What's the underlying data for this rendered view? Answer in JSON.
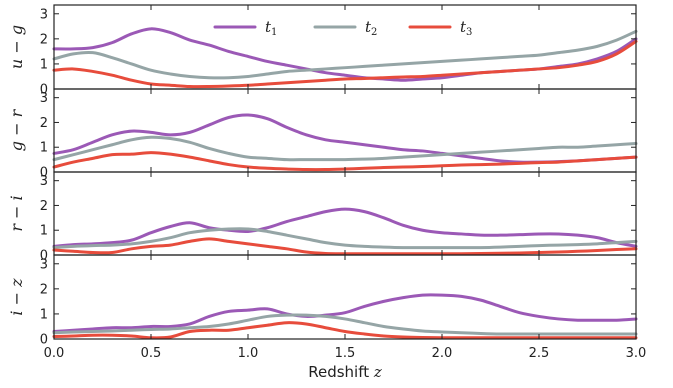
{
  "chart_data": {
    "type": "line",
    "xlabel": "Redshift z",
    "xlim": [
      0.0,
      3.0
    ],
    "xticks": [
      "0.0",
      "0.5",
      "1.0",
      "1.5",
      "2.0",
      "2.5",
      "3.0"
    ],
    "ylim": [
      0,
      3.35
    ],
    "yticks": [
      "0",
      "1",
      "2",
      "3"
    ],
    "legend": {
      "placement": "top-center",
      "entries": [
        "t1",
        "t2",
        "t3"
      ]
    },
    "colors": {
      "t1": "#9b59b6",
      "t2": "#95a5a6",
      "t3": "#e74c3c"
    },
    "x": [
      0.0,
      0.1,
      0.2,
      0.3,
      0.4,
      0.5,
      0.6,
      0.7,
      0.8,
      0.9,
      1.0,
      1.1,
      1.2,
      1.3,
      1.4,
      1.5,
      1.6,
      1.7,
      1.8,
      1.9,
      2.0,
      2.1,
      2.2,
      2.3,
      2.4,
      2.5,
      2.6,
      2.7,
      2.8,
      2.9,
      3.0
    ],
    "panels": [
      {
        "ylabel": "u − g",
        "series": [
          {
            "name": "t1",
            "values": [
              1.6,
              1.6,
              1.65,
              1.85,
              2.2,
              2.4,
              2.25,
              1.95,
              1.75,
              1.5,
              1.3,
              1.1,
              0.95,
              0.8,
              0.65,
              0.55,
              0.45,
              0.4,
              0.35,
              0.4,
              0.45,
              0.55,
              0.65,
              0.7,
              0.75,
              0.8,
              0.9,
              1.0,
              1.2,
              1.5,
              2.0
            ]
          },
          {
            "name": "t2",
            "values": [
              1.2,
              1.4,
              1.45,
              1.25,
              1.0,
              0.75,
              0.6,
              0.5,
              0.45,
              0.45,
              0.5,
              0.6,
              0.7,
              0.75,
              0.8,
              0.85,
              0.9,
              0.95,
              1.0,
              1.05,
              1.1,
              1.15,
              1.2,
              1.25,
              1.3,
              1.35,
              1.45,
              1.55,
              1.7,
              1.95,
              2.3
            ]
          },
          {
            "name": "t3",
            "values": [
              0.75,
              0.8,
              0.7,
              0.55,
              0.35,
              0.2,
              0.15,
              0.1,
              0.1,
              0.12,
              0.15,
              0.2,
              0.25,
              0.3,
              0.35,
              0.4,
              0.42,
              0.45,
              0.48,
              0.5,
              0.55,
              0.6,
              0.65,
              0.7,
              0.75,
              0.8,
              0.85,
              0.95,
              1.1,
              1.4,
              1.9
            ]
          }
        ]
      },
      {
        "ylabel": "g − r",
        "series": [
          {
            "name": "t1",
            "values": [
              0.75,
              0.9,
              1.2,
              1.5,
              1.65,
              1.6,
              1.5,
              1.6,
              1.9,
              2.2,
              2.3,
              2.15,
              1.8,
              1.5,
              1.3,
              1.2,
              1.1,
              1.0,
              0.9,
              0.85,
              0.75,
              0.65,
              0.55,
              0.45,
              0.4,
              0.4,
              0.42,
              0.45,
              0.5,
              0.55,
              0.6
            ]
          },
          {
            "name": "t2",
            "values": [
              0.5,
              0.7,
              0.9,
              1.1,
              1.3,
              1.4,
              1.35,
              1.2,
              0.95,
              0.75,
              0.6,
              0.55,
              0.5,
              0.5,
              0.5,
              0.5,
              0.52,
              0.55,
              0.6,
              0.65,
              0.7,
              0.75,
              0.8,
              0.85,
              0.9,
              0.95,
              1.0,
              1.0,
              1.05,
              1.1,
              1.15
            ]
          },
          {
            "name": "t3",
            "values": [
              0.2,
              0.4,
              0.55,
              0.7,
              0.72,
              0.78,
              0.72,
              0.6,
              0.45,
              0.3,
              0.2,
              0.15,
              0.12,
              0.1,
              0.1,
              0.12,
              0.15,
              0.18,
              0.2,
              0.22,
              0.25,
              0.28,
              0.3,
              0.32,
              0.35,
              0.38,
              0.4,
              0.45,
              0.5,
              0.55,
              0.6
            ]
          }
        ]
      },
      {
        "ylabel": "r − i",
        "series": [
          {
            "name": "t1",
            "values": [
              0.35,
              0.42,
              0.45,
              0.5,
              0.6,
              0.9,
              1.15,
              1.3,
              1.1,
              1.0,
              0.95,
              1.1,
              1.35,
              1.55,
              1.75,
              1.85,
              1.75,
              1.5,
              1.2,
              1.0,
              0.9,
              0.85,
              0.8,
              0.8,
              0.82,
              0.85,
              0.85,
              0.8,
              0.7,
              0.5,
              0.35
            ]
          },
          {
            "name": "t2",
            "values": [
              0.3,
              0.35,
              0.38,
              0.4,
              0.45,
              0.55,
              0.7,
              0.9,
              1.0,
              1.05,
              1.05,
              0.95,
              0.8,
              0.65,
              0.5,
              0.4,
              0.35,
              0.32,
              0.3,
              0.3,
              0.3,
              0.3,
              0.3,
              0.32,
              0.35,
              0.38,
              0.4,
              0.42,
              0.45,
              0.5,
              0.55
            ]
          },
          {
            "name": "t3",
            "values": [
              0.2,
              0.15,
              0.1,
              0.1,
              0.25,
              0.35,
              0.4,
              0.55,
              0.65,
              0.55,
              0.45,
              0.35,
              0.25,
              0.12,
              0.06,
              0.05,
              0.05,
              0.05,
              0.05,
              0.05,
              0.05,
              0.05,
              0.06,
              0.07,
              0.08,
              0.1,
              0.12,
              0.15,
              0.18,
              0.22,
              0.25
            ]
          }
        ]
      },
      {
        "ylabel": "i − z",
        "series": [
          {
            "name": "t1",
            "values": [
              0.3,
              0.35,
              0.4,
              0.45,
              0.45,
              0.5,
              0.5,
              0.6,
              0.9,
              1.1,
              1.15,
              1.2,
              1.0,
              0.9,
              0.95,
              1.05,
              1.3,
              1.5,
              1.65,
              1.75,
              1.75,
              1.7,
              1.55,
              1.3,
              1.05,
              0.9,
              0.8,
              0.75,
              0.75,
              0.75,
              0.8
            ]
          },
          {
            "name": "t2",
            "values": [
              0.25,
              0.28,
              0.3,
              0.32,
              0.35,
              0.38,
              0.4,
              0.45,
              0.5,
              0.6,
              0.75,
              0.9,
              0.95,
              0.95,
              0.9,
              0.8,
              0.65,
              0.5,
              0.4,
              0.32,
              0.28,
              0.25,
              0.22,
              0.2,
              0.2,
              0.2,
              0.2,
              0.2,
              0.2,
              0.2,
              0.2
            ]
          },
          {
            "name": "t3",
            "values": [
              0.1,
              0.12,
              0.15,
              0.15,
              0.12,
              0.05,
              0.08,
              0.3,
              0.35,
              0.35,
              0.45,
              0.55,
              0.65,
              0.6,
              0.45,
              0.3,
              0.2,
              0.12,
              0.08,
              0.06,
              0.05,
              0.05,
              0.05,
              0.05,
              0.05,
              0.05,
              0.05,
              0.05,
              0.05,
              0.05,
              0.05
            ]
          }
        ]
      }
    ]
  }
}
